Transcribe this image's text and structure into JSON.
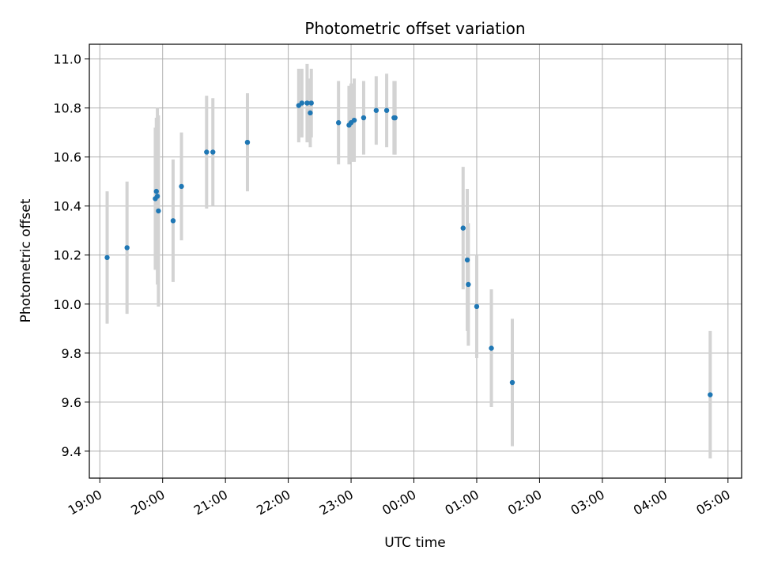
{
  "chart_data": {
    "type": "scatter",
    "title": "Photometric offset variation",
    "xlabel": "UTC time",
    "ylabel": "Photometric offset",
    "x_unit": "UTC time",
    "xlim": [
      "18:50",
      "05:13"
    ],
    "ylim": [
      9.29,
      11.06
    ],
    "grid": true,
    "colors": {
      "point": "#1f77b4",
      "errorbar": "#d3d3d3"
    },
    "x_ticks": [
      "19:00",
      "20:00",
      "21:00",
      "22:00",
      "23:00",
      "00:00",
      "01:00",
      "02:00",
      "03:00",
      "04:00",
      "05:00"
    ],
    "y_ticks": [
      "9.4",
      "9.6",
      "9.8",
      "10.0",
      "10.2",
      "10.4",
      "10.6",
      "10.8",
      "11.0"
    ],
    "series": [
      {
        "points": [
          {
            "x": "19:07",
            "y": 10.19,
            "err": 0.27
          },
          {
            "x": "19:26",
            "y": 10.23,
            "err": 0.27
          },
          {
            "x": "19:53",
            "y": 10.43,
            "err": 0.29
          },
          {
            "x": "19:54",
            "y": 10.46,
            "err": 0.3
          },
          {
            "x": "19:55",
            "y": 10.44,
            "err": 0.36
          },
          {
            "x": "19:56",
            "y": 10.38,
            "err": 0.39
          },
          {
            "x": "20:10",
            "y": 10.34,
            "err": 0.25
          },
          {
            "x": "20:18",
            "y": 10.48,
            "err": 0.22
          },
          {
            "x": "20:42",
            "y": 10.62,
            "err": 0.23
          },
          {
            "x": "20:48",
            "y": 10.62,
            "err": 0.22
          },
          {
            "x": "21:21",
            "y": 10.66,
            "err": 0.2
          },
          {
            "x": "22:10",
            "y": 10.81,
            "err": 0.15
          },
          {
            "x": "22:13",
            "y": 10.82,
            "err": 0.14
          },
          {
            "x": "22:18",
            "y": 10.82,
            "err": 0.16
          },
          {
            "x": "22:21",
            "y": 10.78,
            "err": 0.14
          },
          {
            "x": "22:22",
            "y": 10.82,
            "err": 0.14
          },
          {
            "x": "22:48",
            "y": 10.74,
            "err": 0.17
          },
          {
            "x": "22:58",
            "y": 10.73,
            "err": 0.16
          },
          {
            "x": "23:00",
            "y": 10.74,
            "err": 0.16
          },
          {
            "x": "23:03",
            "y": 10.75,
            "err": 0.17
          },
          {
            "x": "23:12",
            "y": 10.76,
            "err": 0.15
          },
          {
            "x": "23:24",
            "y": 10.79,
            "err": 0.14
          },
          {
            "x": "23:34",
            "y": 10.79,
            "err": 0.15
          },
          {
            "x": "23:41",
            "y": 10.76,
            "err": 0.15
          },
          {
            "x": "23:42",
            "y": 10.76,
            "err": 0.15
          },
          {
            "x": "00:47",
            "y": 10.31,
            "err": 0.25
          },
          {
            "x": "00:51",
            "y": 10.18,
            "err": 0.29
          },
          {
            "x": "00:52",
            "y": 10.08,
            "err": 0.25
          },
          {
            "x": "01:00",
            "y": 9.99,
            "err": 0.21
          },
          {
            "x": "01:14",
            "y": 9.82,
            "err": 0.24
          },
          {
            "x": "01:34",
            "y": 9.68,
            "err": 0.26
          },
          {
            "x": "04:43",
            "y": 9.63,
            "err": 0.26
          }
        ]
      }
    ]
  }
}
